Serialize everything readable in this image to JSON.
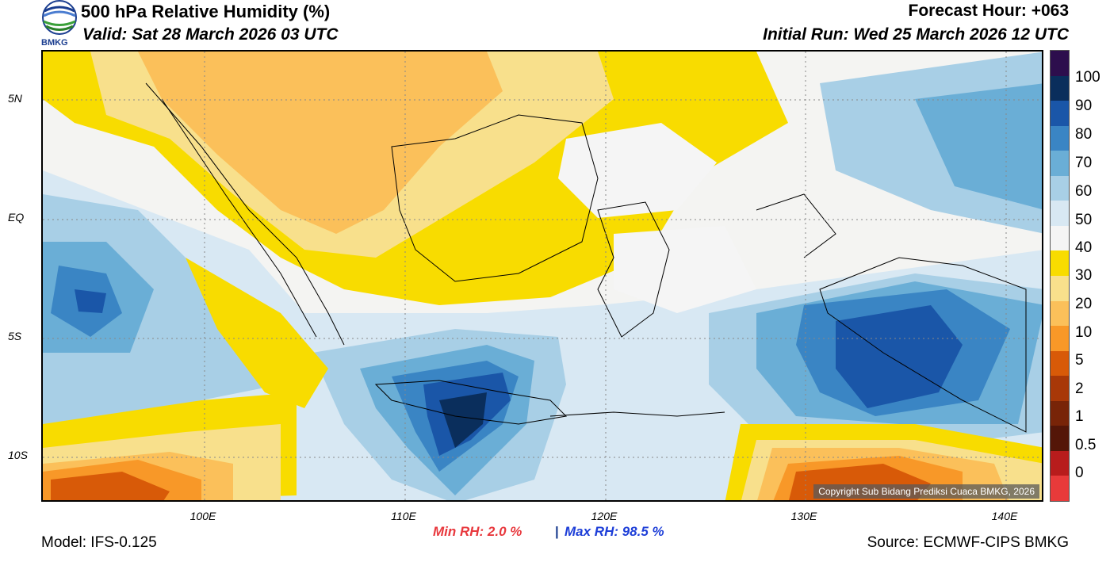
{
  "header": {
    "title": "500 hPa Relative Humidity (%)",
    "valid": "Valid: Sat 28 March 2026 03 UTC",
    "forecast_hour": "Forecast Hour: +063",
    "initial_run": "Initial Run: Wed 25 March 2026 12 UTC",
    "logo_text": "BMKG"
  },
  "map": {
    "lat_labels": [
      "5N",
      "EQ",
      "5S",
      "10S"
    ],
    "lon_labels": [
      "100E",
      "110E",
      "120E",
      "130E",
      "140E"
    ],
    "copyright": "Copyright Sub Bidang Prediksi Cuaca BMKG, 2026"
  },
  "colorbar": {
    "labels": [
      "100",
      "90",
      "80",
      "70",
      "60",
      "50",
      "40",
      "30",
      "20",
      "10",
      "5",
      "2",
      "1",
      "0.5",
      "0"
    ],
    "colors": [
      "#2d0e4d",
      "#0a2e5c",
      "#1a56a8",
      "#3a85c4",
      "#6aaed6",
      "#a8cfe6",
      "#d8e8f3",
      "#f5f5f5",
      "#f8dc00",
      "#f8e08c",
      "#fbc05a",
      "#f89828",
      "#d85a08",
      "#a83808",
      "#782408",
      "#541608",
      "#b81c1c",
      "#e83a3a"
    ]
  },
  "footer": {
    "min_rh": "Min RH:   2.0 %",
    "separator": "|",
    "max_rh": "Max RH:  98.5 %",
    "model": "Model: IFS-0.125",
    "source": "Source: ECMWF-CIPS BMKG"
  }
}
